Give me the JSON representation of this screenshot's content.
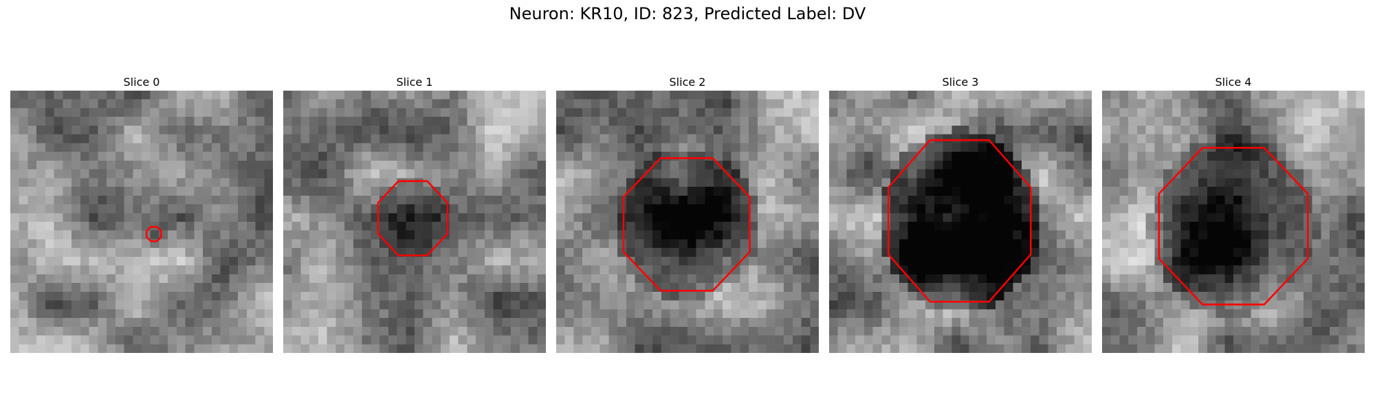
{
  "figure": {
    "title": "Neuron: KR10, ID: 823, Predicted Label: DV"
  },
  "slices": [
    {
      "title": "Slice 0",
      "seed": 11,
      "blob_strength": 0.25,
      "roi_scale": 0.1,
      "contour_color": "#ff0000"
    },
    {
      "title": "Slice 1",
      "seed": 27,
      "blob_strength": 0.35,
      "roi_scale": 0.4,
      "contour_color": "#ff0000"
    },
    {
      "title": "Slice 2",
      "seed": 43,
      "blob_strength": 0.75,
      "roi_scale": 0.78,
      "contour_color": "#ff0000"
    },
    {
      "title": "Slice 3",
      "seed": 59,
      "blob_strength": 0.95,
      "roi_scale": 0.88,
      "contour_color": "#ff0000"
    },
    {
      "title": "Slice 4",
      "seed": 71,
      "blob_strength": 0.65,
      "roi_scale": 0.95,
      "contour_color": "#ff0000"
    }
  ]
}
